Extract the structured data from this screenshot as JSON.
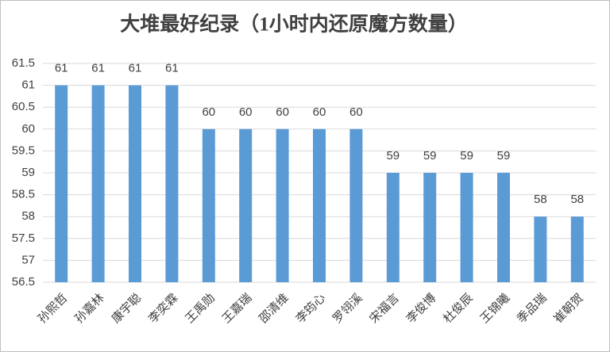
{
  "chart_data": {
    "type": "bar",
    "title": "大堆最好纪录（1小时内还原魔方数量）",
    "categories": [
      "孙熙哲",
      "孙嘉林",
      "康宇聪",
      "李奕霖",
      "王禹勋",
      "王嘉瑞",
      "邵清维",
      "李筠心",
      "罗翎溪",
      "宋福言",
      "李俊博",
      "杜俊辰",
      "王锦曦",
      "季品瑞",
      "崔朝贺"
    ],
    "values": [
      61,
      61,
      61,
      61,
      60,
      60,
      60,
      60,
      60,
      59,
      59,
      59,
      59,
      58,
      58
    ],
    "color": "#5b9bd5",
    "ylim": [
      56.5,
      61.5
    ],
    "yticks": [
      56.5,
      57,
      57.5,
      58,
      58.5,
      59,
      59.5,
      60,
      60.5,
      61,
      61.5
    ],
    "grid": true
  }
}
